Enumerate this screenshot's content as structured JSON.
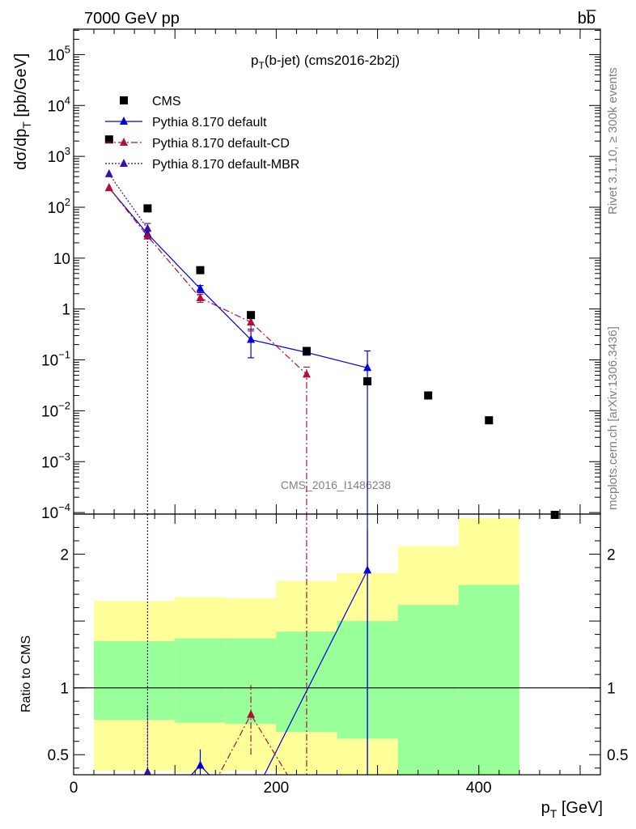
{
  "header": {
    "left": "7000 GeV pp",
    "right": "bb̅"
  },
  "side_text": {
    "rivet": "Rivet 3.1.10, ≥ 300k events",
    "mcplots": "mcplots.cern.ch [arXiv:1306.3436]"
  },
  "watermark": "CMS_2016_I1486238",
  "colors": {
    "cms": "#000000",
    "default": "#0000dd",
    "cd": "#b0103a",
    "mbr": "#3a0fa8",
    "band_outer": "#ffff99",
    "band_inner": "#99ff99"
  },
  "chart_data": {
    "type": "scatter",
    "title": "p_T(b-jet) (cms2016-2b2j)",
    "title_main": "p",
    "title_sub": "T",
    "title_rest": "(b-jet) (cms2016-2b2j)",
    "xlabel": "p_T [GeV]",
    "xlabel_main": "p",
    "xlabel_sub": "T",
    "xlabel_rest": " [GeV]",
    "ylabel": "dσ/dp_T [pb/GeV]",
    "ylabel_a": "dσ/dp",
    "ylabel_sub": "T",
    "ylabel_b": " [pb/GeV]",
    "ratio_ylabel": "Ratio to CMS",
    "xlim": [
      0,
      520
    ],
    "ylim": [
      0.0001,
      300000
    ],
    "ylog": true,
    "ratio_ylim": [
      0.35,
      2.3
    ],
    "x_ticks": [
      0,
      200,
      400
    ],
    "y_ticks": [
      {
        "v": 100000,
        "base": "10",
        "exp": "5"
      },
      {
        "v": 10000,
        "base": "10",
        "exp": "4"
      },
      {
        "v": 1000,
        "base": "10",
        "exp": "3"
      },
      {
        "v": 100,
        "base": "10",
        "exp": "2"
      },
      {
        "v": 10,
        "base": "10",
        "exp": ""
      },
      {
        "v": 1,
        "base": "1",
        "exp": ""
      },
      {
        "v": 0.1,
        "base": "10",
        "exp": "−1"
      },
      {
        "v": 0.01,
        "base": "10",
        "exp": "−2"
      },
      {
        "v": 0.001,
        "base": "10",
        "exp": "−3"
      },
      {
        "v": 0.0001,
        "base": "10",
        "exp": "−4"
      }
    ],
    "ratio_ticks": [
      {
        "v": 0.5,
        "label": "0.5"
      },
      {
        "v": 1,
        "label": "1"
      },
      {
        "v": 2,
        "label": "2"
      }
    ],
    "legend_position": "top-left",
    "series": [
      {
        "name": "CMS",
        "style": "marker",
        "x": [
          35,
          73,
          125,
          175,
          230,
          290,
          350,
          410,
          475
        ],
        "y": [
          2150,
          95,
          5.8,
          0.76,
          0.15,
          0.038,
          0.02,
          0.0065,
          9e-05
        ]
      },
      {
        "name": "Pythia 8.170 default",
        "style": "solid",
        "x": [
          35,
          73,
          125,
          175,
          230,
          290
        ],
        "y": [
          240,
          30,
          2.5,
          0.25,
          0.14,
          0.07
        ],
        "err_lo": [
          null,
          null,
          0.4,
          0.14,
          null,
          0.07
        ],
        "err_hi": [
          null,
          null,
          0.4,
          0.15,
          null,
          0.08
        ]
      },
      {
        "name": "Pythia 8.170 default-CD",
        "style": "dashdot",
        "x": [
          35,
          73,
          125,
          175,
          230
        ],
        "y": [
          240,
          27,
          1.65,
          0.55,
          0.052
        ],
        "err_lo": [
          null,
          null,
          0.3,
          0.18,
          0.052
        ],
        "err_hi": [
          null,
          null,
          0.3,
          0.2,
          0.02
        ]
      },
      {
        "name": "Pythia 8.170 default-MBR",
        "style": "dotted",
        "x": [
          35,
          73
        ],
        "y": [
          450,
          38
        ],
        "err_lo": [
          null,
          38
        ],
        "err_hi": [
          null,
          10
        ]
      }
    ],
    "ratio_bands": [
      {
        "x0": 20,
        "x1": 100,
        "outer": [
          0.38,
          1.65
        ],
        "inner": [
          0.76,
          1.35
        ]
      },
      {
        "x0": 100,
        "x1": 150,
        "outer": [
          0.37,
          1.68
        ],
        "inner": [
          0.74,
          1.37
        ]
      },
      {
        "x0": 150,
        "x1": 200,
        "outer": [
          0.38,
          1.67
        ],
        "inner": [
          0.73,
          1.37
        ]
      },
      {
        "x0": 200,
        "x1": 260,
        "outer": [
          0.36,
          1.8
        ],
        "inner": [
          0.67,
          1.42
        ]
      },
      {
        "x0": 260,
        "x1": 320,
        "outer": [
          0.33,
          1.86
        ],
        "inner": [
          0.62,
          1.5
        ]
      },
      {
        "x0": 320,
        "x1": 380,
        "outer": [
          0.44,
          2.06
        ],
        "inner": [
          0.3,
          1.62
        ]
      },
      {
        "x0": 380,
        "x1": 440,
        "outer": [
          0.28,
          2.27
        ],
        "inner": [
          0.2,
          1.77
        ]
      }
    ],
    "ratio_series": [
      {
        "name": "Pythia 8.170 default",
        "x": [
          125,
          290
        ],
        "y": [
          0.42,
          1.88
        ],
        "err_lo": [
          0.07,
          1.6
        ],
        "err_hi": [
          0.12,
          0.3
        ],
        "line_x": [
          110,
          125,
          140,
          185,
          290
        ],
        "line_y": [
          0.3,
          0.42,
          0.3,
          0.3,
          1.88
        ]
      },
      {
        "name": "Pythia 8.170 default-CD",
        "x": [
          175
        ],
        "y": [
          0.8
        ],
        "err_lo": [
          0.3
        ],
        "err_hi": [
          0.22
        ],
        "line_x": [
          140,
          175,
          215
        ],
        "line_y": [
          0.3,
          0.8,
          0.3
        ]
      },
      {
        "name": "Pythia 8.170 default-MBR",
        "x": [
          73
        ],
        "y": [
          0.37
        ],
        "err_lo": [
          0.1
        ],
        "err_hi": [
          0.5
        ],
        "line_x": [],
        "line_y": []
      }
    ]
  }
}
